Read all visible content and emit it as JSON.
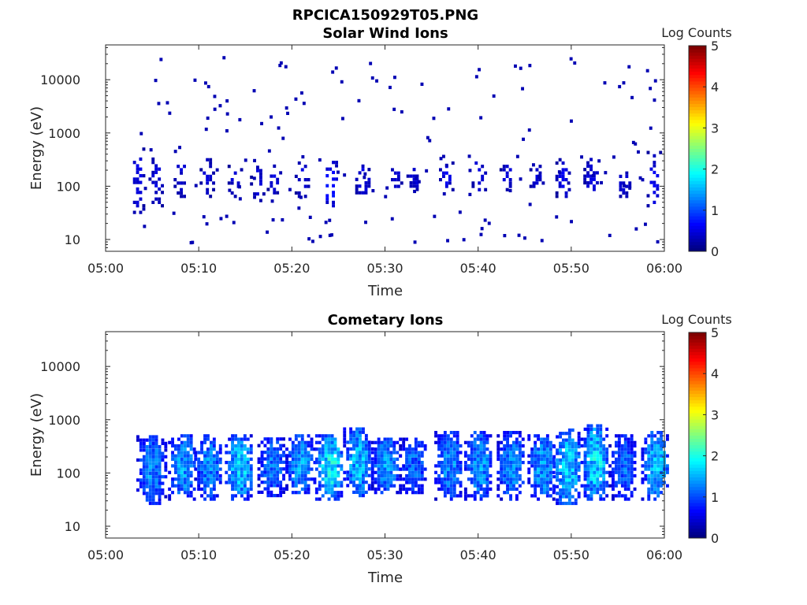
{
  "figure": {
    "title": "RPCICA150929T05.PNG"
  },
  "colors": {
    "axis": "#262626",
    "background": "#ffffff",
    "colormap": "jet"
  },
  "chart_data": [
    {
      "type": "heatmap",
      "title": "Solar Wind Ions",
      "xlabel": "Time",
      "ylabel": "Energy (eV)",
      "x_ticks": [
        "05:00",
        "05:10",
        "05:20",
        "05:30",
        "05:40",
        "05:50",
        "06:00"
      ],
      "x_range_minutes": [
        0,
        60
      ],
      "y_scale": "log",
      "y_ticks": [
        "10",
        "100",
        "1000",
        "10000"
      ],
      "y_range": [
        6,
        45000
      ],
      "colorbar": {
        "label": "Log Counts",
        "ticks": [
          "0",
          "1",
          "2",
          "3",
          "4",
          "5"
        ],
        "range": [
          0,
          5
        ]
      },
      "bursts": [
        {
          "t": 3.3,
          "e_lo": 30,
          "e_hi": 500,
          "peak": 0.6
        },
        {
          "t": 5.3,
          "e_lo": 40,
          "e_hi": 400,
          "peak": 0.5
        },
        {
          "t": 8.0,
          "e_lo": 60,
          "e_hi": 300,
          "peak": 0.5
        },
        {
          "t": 10.8,
          "e_lo": 60,
          "e_hi": 300,
          "peak": 0.5
        },
        {
          "t": 13.8,
          "e_lo": 60,
          "e_hi": 250,
          "peak": 0.5
        },
        {
          "t": 16.2,
          "e_lo": 50,
          "e_hi": 300,
          "peak": 0.5
        },
        {
          "t": 18.0,
          "e_lo": 70,
          "e_hi": 250,
          "peak": 0.5
        },
        {
          "t": 21.0,
          "e_lo": 60,
          "e_hi": 300,
          "peak": 0.5
        },
        {
          "t": 24.0,
          "e_lo": 40,
          "e_hi": 280,
          "peak": 0.9
        },
        {
          "t": 27.5,
          "e_lo": 70,
          "e_hi": 250,
          "peak": 0.7
        },
        {
          "t": 31.0,
          "e_lo": 80,
          "e_hi": 200,
          "peak": 0.5
        },
        {
          "t": 33.0,
          "e_lo": 70,
          "e_hi": 220,
          "peak": 0.5
        },
        {
          "t": 36.5,
          "e_lo": 80,
          "e_hi": 350,
          "peak": 0.6
        },
        {
          "t": 40.0,
          "e_lo": 80,
          "e_hi": 300,
          "peak": 0.6
        },
        {
          "t": 43.0,
          "e_lo": 80,
          "e_hi": 250,
          "peak": 0.5
        },
        {
          "t": 46.2,
          "e_lo": 60,
          "e_hi": 250,
          "peak": 0.5
        },
        {
          "t": 49.0,
          "e_lo": 60,
          "e_hi": 300,
          "peak": 0.6
        },
        {
          "t": 52.0,
          "e_lo": 70,
          "e_hi": 300,
          "peak": 0.6
        },
        {
          "t": 55.5,
          "e_lo": 60,
          "e_hi": 200,
          "peak": 0.5
        },
        {
          "t": 58.8,
          "e_lo": 40,
          "e_hi": 400,
          "peak": 0.6
        }
      ],
      "background_hits": true
    },
    {
      "type": "heatmap",
      "title": "Cometary Ions",
      "xlabel": "Time",
      "ylabel": "Energy (eV)",
      "x_ticks": [
        "05:00",
        "05:10",
        "05:20",
        "05:30",
        "05:40",
        "05:50",
        "06:00"
      ],
      "x_range_minutes": [
        0,
        60
      ],
      "y_scale": "log",
      "y_ticks": [
        "10",
        "100",
        "1000",
        "10000"
      ],
      "y_range": [
        6,
        45000
      ],
      "colorbar": {
        "label": "Log Counts",
        "ticks": [
          "0",
          "1",
          "2",
          "3",
          "4",
          "5"
        ],
        "range": [
          0,
          5
        ]
      },
      "bursts": [
        {
          "t": 4.8,
          "e_lo": 25,
          "e_hi": 500,
          "peak": 1.5
        },
        {
          "t": 8.2,
          "e_lo": 30,
          "e_hi": 500,
          "peak": 1.6
        },
        {
          "t": 11.0,
          "e_lo": 30,
          "e_hi": 500,
          "peak": 1.5
        },
        {
          "t": 14.3,
          "e_lo": 30,
          "e_hi": 500,
          "peak": 1.9
        },
        {
          "t": 17.8,
          "e_lo": 35,
          "e_hi": 450,
          "peak": 1.4
        },
        {
          "t": 20.8,
          "e_lo": 40,
          "e_hi": 500,
          "peak": 1.6
        },
        {
          "t": 24.0,
          "e_lo": 30,
          "e_hi": 500,
          "peak": 2.1
        },
        {
          "t": 27.0,
          "e_lo": 35,
          "e_hi": 650,
          "peak": 1.8
        },
        {
          "t": 30.0,
          "e_lo": 40,
          "e_hi": 450,
          "peak": 1.6
        },
        {
          "t": 33.0,
          "e_lo": 40,
          "e_hi": 450,
          "peak": 1.3
        },
        {
          "t": 36.8,
          "e_lo": 30,
          "e_hi": 600,
          "peak": 1.5
        },
        {
          "t": 40.0,
          "e_lo": 30,
          "e_hi": 600,
          "peak": 1.6
        },
        {
          "t": 43.5,
          "e_lo": 30,
          "e_hi": 550,
          "peak": 1.5
        },
        {
          "t": 46.8,
          "e_lo": 30,
          "e_hi": 500,
          "peak": 1.6
        },
        {
          "t": 49.5,
          "e_lo": 25,
          "e_hi": 600,
          "peak": 1.9
        },
        {
          "t": 52.5,
          "e_lo": 30,
          "e_hi": 800,
          "peak": 2.0
        },
        {
          "t": 55.5,
          "e_lo": 30,
          "e_hi": 500,
          "peak": 1.3
        },
        {
          "t": 59.0,
          "e_lo": 30,
          "e_hi": 600,
          "peak": 1.8
        }
      ],
      "background_hits": false
    }
  ]
}
